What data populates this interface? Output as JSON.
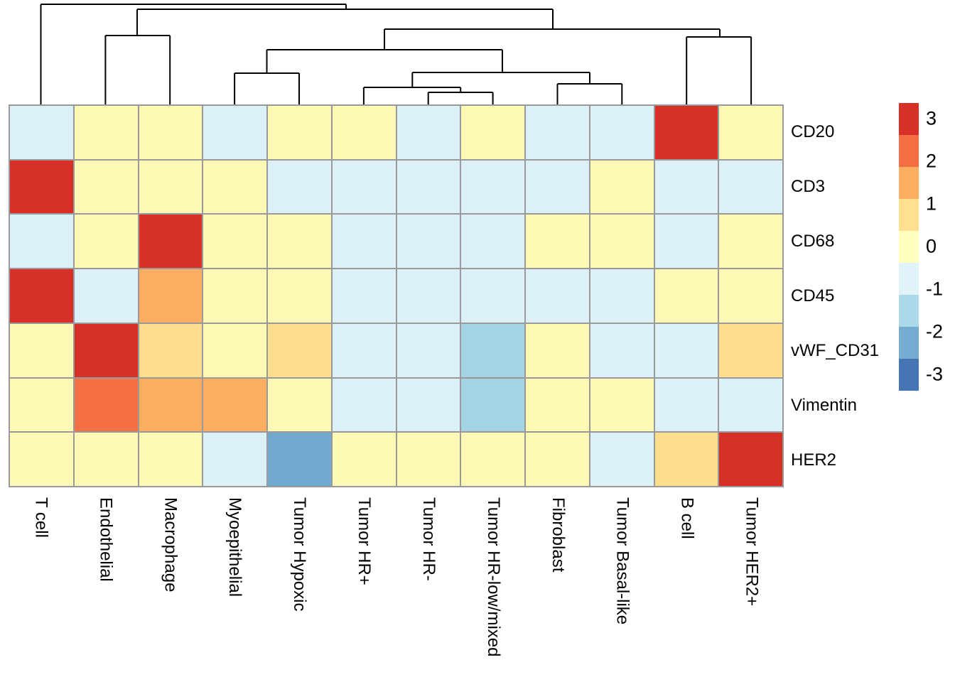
{
  "chart_data": {
    "type": "heatmap",
    "description": "Clustered heatmap of marker expression (z-score) by cell phenotype with column dendrogram",
    "columns": [
      "T cell",
      "Endothelial",
      "Macrophage",
      "Myoepithelial",
      "Tumor Hypoxic",
      "Tumor HR+",
      "Tumor HR-",
      "Tumor HR-low/mixed",
      "Fibroblast",
      "Tumor Basal-like",
      "B cell",
      "Tumor HER2+"
    ],
    "rows": [
      "CD20",
      "CD3",
      "CD68",
      "CD45",
      "vWF_CD31",
      "Vimentin",
      "HER2"
    ],
    "values": [
      [
        -0.8,
        0.15,
        0.15,
        -0.8,
        0.15,
        0.15,
        -0.8,
        0.15,
        -0.8,
        -0.8,
        3.1,
        0.15
      ],
      [
        3.1,
        0.15,
        0.15,
        0.15,
        -0.8,
        -0.8,
        -0.8,
        -0.8,
        -0.8,
        0.15,
        -0.8,
        -0.8
      ],
      [
        -0.8,
        0.15,
        3.1,
        0.15,
        0.15,
        -0.8,
        -0.8,
        -0.8,
        0.15,
        0.15,
        -0.8,
        0.15
      ],
      [
        3.1,
        -0.8,
        1.5,
        0.15,
        0.15,
        -0.8,
        -0.8,
        -0.8,
        -0.8,
        -0.8,
        0.15,
        0.15
      ],
      [
        0.15,
        3.1,
        0.8,
        0.15,
        0.8,
        -0.8,
        -0.8,
        -1.6,
        0.15,
        -0.8,
        -0.8,
        0.8
      ],
      [
        0.15,
        2.2,
        1.5,
        1.5,
        0.15,
        -0.8,
        -0.8,
        -1.6,
        0.15,
        0.15,
        -0.8,
        -0.8
      ],
      [
        0.15,
        0.15,
        0.15,
        -0.8,
        -2.3,
        0.15,
        0.15,
        0.15,
        0.15,
        -0.8,
        0.8,
        3.1
      ]
    ],
    "value_range": [
      -3.375,
      3.375
    ],
    "grid": true,
    "grid_color": "#999999",
    "colormap": {
      "name": "RdYlBu-reversed",
      "anchor_values": [
        -3,
        -2.25,
        -1.5,
        -0.75,
        0,
        0.75,
        1.5,
        2.25,
        3
      ],
      "anchor_colors": [
        "#4575B4",
        "#74ADD1",
        "#ABD9E9",
        "#E0F3F8",
        "#FFFFBF",
        "#FEE090",
        "#FDAE61",
        "#F46D43",
        "#D73027"
      ]
    },
    "legend": {
      "position": "right",
      "block_colors_top_to_bottom": [
        "#D73027",
        "#F46D43",
        "#FDAE61",
        "#FEE090",
        "#FFFFBF",
        "#E0F3F8",
        "#ABD9E9",
        "#74ADD1",
        "#4575B4"
      ],
      "tick_labels": [
        "3",
        "2",
        "1",
        "0",
        "-1",
        "-2",
        "-3"
      ],
      "tick_values": [
        3,
        2,
        1,
        0,
        -1,
        -2,
        -3
      ]
    },
    "dendrogram": {
      "axis": "columns",
      "line_color": "#000000",
      "line_width": 2,
      "leaf_order": [
        "T cell",
        "Endothelial",
        "Macrophage",
        "Myoepithelial",
        "Tumor Hypoxic",
        "Tumor HR+",
        "Tumor HR-",
        "Tumor HR-low/mixed",
        "Fibroblast",
        "Tumor Basal-like",
        "B cell",
        "Tumor HER2+"
      ],
      "segments": [
        [
          57.5,
          6,
          487,
          6
        ],
        [
          57.5,
          6,
          57.5,
          147
        ],
        [
          487,
          6,
          487,
          13
        ],
        [
          193,
          13,
          778,
          13
        ],
        [
          193,
          13,
          193,
          50
        ],
        [
          148.4,
          50,
          239.2,
          50
        ],
        [
          148.4,
          50,
          148.4,
          147
        ],
        [
          239.2,
          50,
          239.2,
          147
        ],
        [
          778,
          13,
          778,
          41
        ],
        [
          541,
          41,
          1013,
          41
        ],
        [
          541,
          41,
          541,
          70
        ],
        [
          375.5,
          70,
          707,
          70
        ],
        [
          375.5,
          70,
          375.5,
          103
        ],
        [
          330.1,
          103,
          421,
          103
        ],
        [
          330.1,
          103,
          330.1,
          147
        ],
        [
          421,
          103,
          421,
          147
        ],
        [
          707,
          70,
          707,
          102
        ],
        [
          580.3,
          102,
          830,
          102
        ],
        [
          580.3,
          102,
          580.3,
          123
        ],
        [
          511.9,
          123,
          648.2,
          123
        ],
        [
          511.9,
          123,
          511.9,
          147
        ],
        [
          648.2,
          123,
          648.2,
          130
        ],
        [
          602.7,
          130,
          693.6,
          130
        ],
        [
          602.7,
          130,
          602.7,
          147
        ],
        [
          693.6,
          130,
          693.6,
          147
        ],
        [
          830,
          102,
          830,
          118
        ],
        [
          784.5,
          118,
          875.3,
          118
        ],
        [
          784.5,
          118,
          784.5,
          147
        ],
        [
          875.3,
          118,
          875.3,
          147
        ],
        [
          1013,
          41,
          1013,
          52
        ],
        [
          966.2,
          52,
          1057.1,
          52
        ],
        [
          966.2,
          52,
          966.2,
          147
        ],
        [
          1057.1,
          52,
          1057.1,
          147
        ]
      ]
    }
  }
}
